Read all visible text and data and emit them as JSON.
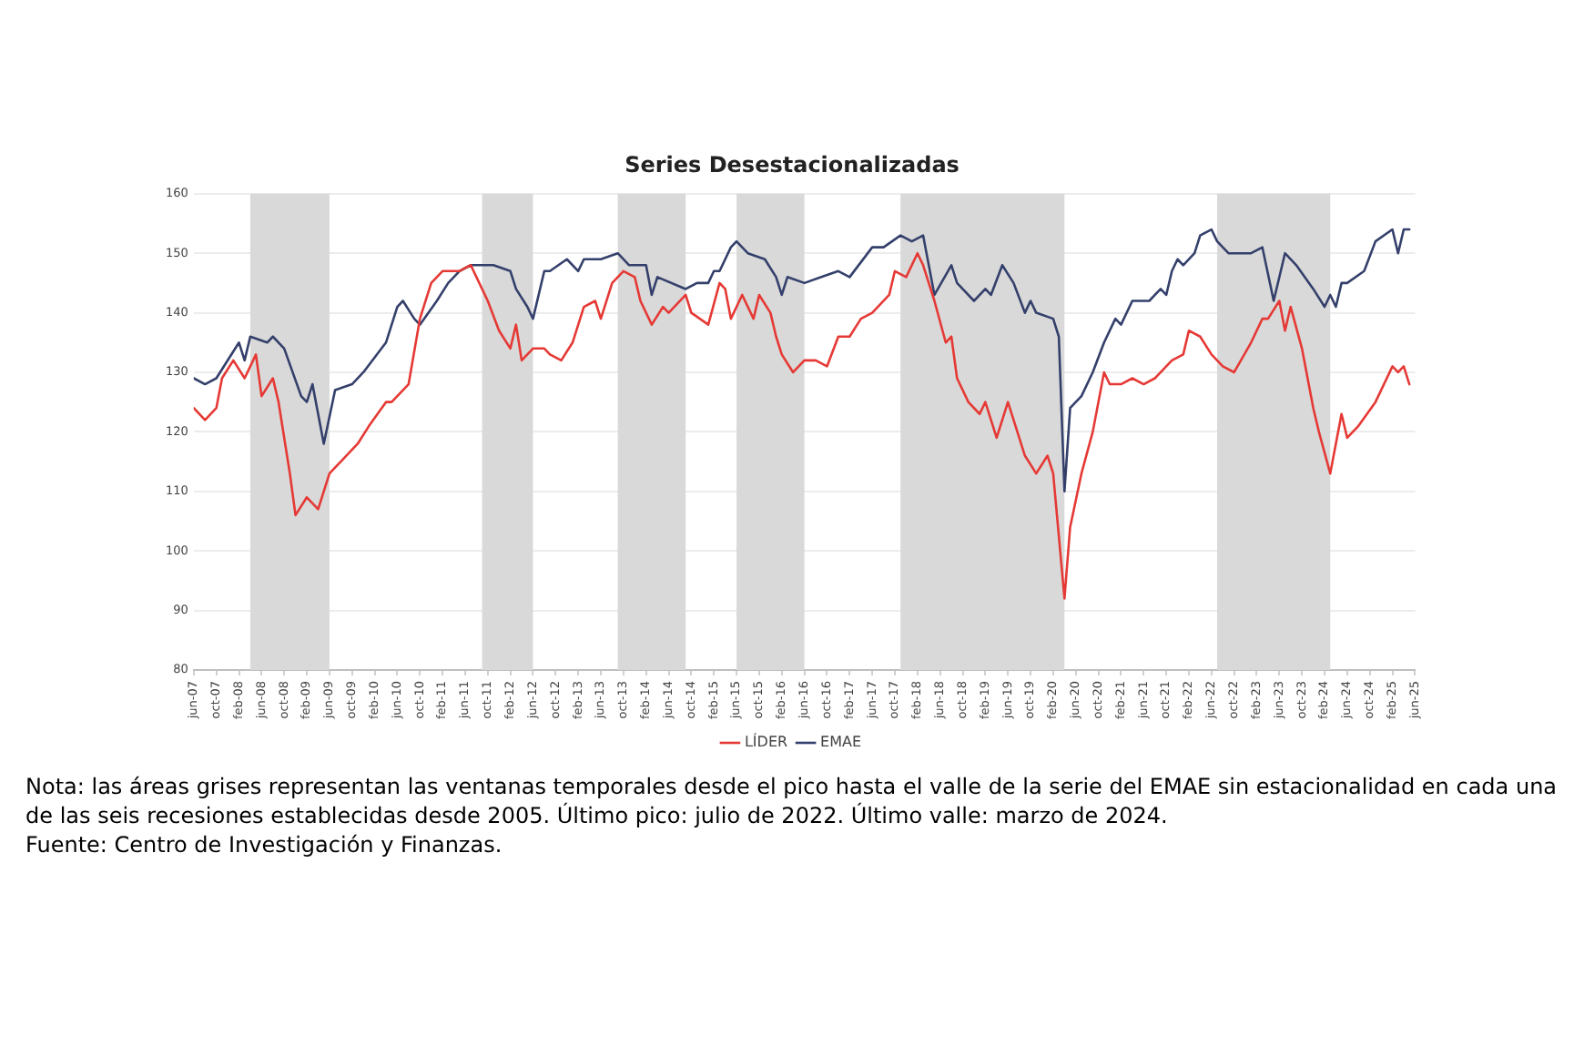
{
  "chart_data": {
    "type": "line",
    "title": "Series Desestacionalizadas",
    "series": [
      {
        "name": "LÍDER",
        "color": "#e53935",
        "x": [
          "2007-06",
          "2007-08",
          "2007-10",
          "2007-11",
          "2008-01",
          "2008-03",
          "2008-05",
          "2008-06",
          "2008-08",
          "2008-09",
          "2008-11",
          "2008-12",
          "2009-02",
          "2009-04",
          "2009-06",
          "2009-08",
          "2009-11",
          "2010-01",
          "2010-04",
          "2010-05",
          "2010-08",
          "2010-10",
          "2010-12",
          "2011-02",
          "2011-05",
          "2011-07",
          "2011-08",
          "2011-10",
          "2011-12",
          "2012-02",
          "2012-03",
          "2012-04",
          "2012-06",
          "2012-08",
          "2012-09",
          "2012-11",
          "2013-01",
          "2013-03",
          "2013-05",
          "2013-06",
          "2013-08",
          "2013-10",
          "2013-12",
          "2014-01",
          "2014-03",
          "2014-05",
          "2014-06",
          "2014-09",
          "2014-10",
          "2015-01",
          "2015-03",
          "2015-04",
          "2015-05",
          "2015-07",
          "2015-09",
          "2015-10",
          "2015-12",
          "2016-01",
          "2016-02",
          "2016-04",
          "2016-06",
          "2016-08",
          "2016-10",
          "2016-12",
          "2017-02",
          "2017-04",
          "2017-06",
          "2017-09",
          "2017-10",
          "2017-12",
          "2018-02",
          "2018-03",
          "2018-05",
          "2018-07",
          "2018-08",
          "2018-09",
          "2018-11",
          "2019-01",
          "2019-02",
          "2019-04",
          "2019-06",
          "2019-09",
          "2019-11",
          "2020-01",
          "2020-02",
          "2020-04",
          "2020-05",
          "2020-07",
          "2020-09",
          "2020-11",
          "2020-12",
          "2021-02",
          "2021-04",
          "2021-06",
          "2021-08",
          "2021-11",
          "2022-01",
          "2022-02",
          "2022-04",
          "2022-06",
          "2022-08",
          "2022-10",
          "2023-01",
          "2023-03",
          "2023-04",
          "2023-06",
          "2023-07",
          "2023-08",
          "2023-10",
          "2023-12",
          "2024-01",
          "2024-03",
          "2024-05",
          "2024-06",
          "2024-08",
          "2024-11",
          "2025-02",
          "2025-03",
          "2025-04",
          "2025-05"
        ],
        "values": [
          124,
          122,
          124,
          129,
          132,
          129,
          133,
          126,
          129,
          125,
          113,
          106,
          109,
          107,
          113,
          115,
          118,
          121,
          125,
          125,
          128,
          139,
          145,
          147,
          147,
          148,
          146,
          142,
          137,
          134,
          138,
          132,
          134,
          134,
          133,
          132,
          135,
          141,
          142,
          139,
          145,
          147,
          146,
          142,
          138,
          141,
          140,
          143,
          140,
          138,
          145,
          144,
          139,
          143,
          139,
          143,
          140,
          136,
          133,
          130,
          132,
          132,
          131,
          136,
          136,
          139,
          140,
          143,
          147,
          146,
          150,
          148,
          142,
          135,
          136,
          129,
          125,
          123,
          125,
          119,
          125,
          116,
          113,
          116,
          113,
          92,
          104,
          113,
          120,
          130,
          128,
          128,
          129,
          128,
          129,
          132,
          133,
          137,
          136,
          133,
          131,
          130,
          135,
          139,
          139,
          142,
          137,
          141,
          134,
          124,
          120,
          113,
          123,
          119,
          121,
          125,
          131,
          130,
          131,
          128
        ]
      },
      {
        "name": "EMAE",
        "color": "#34406b",
        "x": [
          "2007-06",
          "2007-08",
          "2007-10",
          "2008-02",
          "2008-03",
          "2008-04",
          "2008-07",
          "2008-08",
          "2008-10",
          "2009-01",
          "2009-02",
          "2009-03",
          "2009-05",
          "2009-07",
          "2009-10",
          "2009-12",
          "2010-04",
          "2010-06",
          "2010-07",
          "2010-09",
          "2010-10",
          "2011-01",
          "2011-03",
          "2011-05",
          "2011-07",
          "2011-09",
          "2011-11",
          "2012-02",
          "2012-03",
          "2012-05",
          "2012-06",
          "2012-08",
          "2012-09",
          "2012-12",
          "2013-02",
          "2013-03",
          "2013-06",
          "2013-09",
          "2013-11",
          "2014-02",
          "2014-03",
          "2014-04",
          "2014-09",
          "2014-11",
          "2015-01",
          "2015-02",
          "2015-03",
          "2015-05",
          "2015-06",
          "2015-08",
          "2015-11",
          "2016-01",
          "2016-02",
          "2016-03",
          "2016-06",
          "2016-09",
          "2016-12",
          "2017-02",
          "2017-06",
          "2017-08",
          "2017-11",
          "2018-01",
          "2018-03",
          "2018-05",
          "2018-08",
          "2018-09",
          "2018-12",
          "2019-02",
          "2019-03",
          "2019-05",
          "2019-07",
          "2019-09",
          "2019-10",
          "2019-11",
          "2020-02",
          "2020-03",
          "2020-04",
          "2020-05",
          "2020-07",
          "2020-09",
          "2020-11",
          "2021-01",
          "2021-02",
          "2021-04",
          "2021-06",
          "2021-07",
          "2021-09",
          "2021-10",
          "2021-11",
          "2021-12",
          "2022-01",
          "2022-03",
          "2022-04",
          "2022-06",
          "2022-07",
          "2022-09",
          "2022-11",
          "2023-01",
          "2023-03",
          "2023-05",
          "2023-07",
          "2023-09",
          "2023-12",
          "2024-02",
          "2024-03",
          "2024-04",
          "2024-05",
          "2024-06",
          "2024-09",
          "2024-11",
          "2025-02",
          "2025-03",
          "2025-04",
          "2025-05"
        ],
        "values": [
          129,
          128,
          129,
          135,
          132,
          136,
          135,
          136,
          134,
          126,
          125,
          128,
          118,
          127,
          128,
          130,
          135,
          141,
          142,
          139,
          138,
          142,
          145,
          147,
          148,
          148,
          148,
          147,
          144,
          141,
          139,
          147,
          147,
          149,
          147,
          149,
          149,
          150,
          148,
          148,
          143,
          146,
          144,
          145,
          145,
          147,
          147,
          151,
          152,
          150,
          149,
          146,
          143,
          146,
          145,
          146,
          147,
          146,
          151,
          151,
          153,
          152,
          153,
          143,
          148,
          145,
          142,
          144,
          143,
          148,
          145,
          140,
          142,
          140,
          139,
          136,
          110,
          124,
          126,
          130,
          135,
          139,
          138,
          142,
          142,
          142,
          144,
          143,
          147,
          149,
          148,
          150,
          153,
          154,
          152,
          150,
          150,
          150,
          151,
          142,
          150,
          148,
          144,
          141,
          143,
          141,
          145,
          145,
          147,
          152,
          154,
          150,
          154,
          154
        ]
      }
    ],
    "xlim": [
      "2007-06",
      "2025-06"
    ],
    "xticks": [
      {
        "value": "2007-06",
        "label": "jun-07"
      },
      {
        "value": "2007-10",
        "label": "oct-07"
      },
      {
        "value": "2008-02",
        "label": "feb-08"
      },
      {
        "value": "2008-06",
        "label": "jun-08"
      },
      {
        "value": "2008-10",
        "label": "oct-08"
      },
      {
        "value": "2009-02",
        "label": "feb-09"
      },
      {
        "value": "2009-06",
        "label": "jun-09"
      },
      {
        "value": "2009-10",
        "label": "oct-09"
      },
      {
        "value": "2010-02",
        "label": "feb-10"
      },
      {
        "value": "2010-06",
        "label": "jun-10"
      },
      {
        "value": "2010-10",
        "label": "oct-10"
      },
      {
        "value": "2011-02",
        "label": "feb-11"
      },
      {
        "value": "2011-06",
        "label": "jun-11"
      },
      {
        "value": "2011-10",
        "label": "oct-11"
      },
      {
        "value": "2012-02",
        "label": "feb-12"
      },
      {
        "value": "2012-06",
        "label": "jun-12"
      },
      {
        "value": "2012-10",
        "label": "oct-12"
      },
      {
        "value": "2013-02",
        "label": "feb-13"
      },
      {
        "value": "2013-06",
        "label": "jun-13"
      },
      {
        "value": "2013-10",
        "label": "oct-13"
      },
      {
        "value": "2014-02",
        "label": "feb-14"
      },
      {
        "value": "2014-06",
        "label": "jun-14"
      },
      {
        "value": "2014-10",
        "label": "oct-14"
      },
      {
        "value": "2015-02",
        "label": "feb-15"
      },
      {
        "value": "2015-06",
        "label": "jun-15"
      },
      {
        "value": "2015-10",
        "label": "oct-15"
      },
      {
        "value": "2016-02",
        "label": "feb-16"
      },
      {
        "value": "2016-06",
        "label": "jun-16"
      },
      {
        "value": "2016-10",
        "label": "oct-16"
      },
      {
        "value": "2017-02",
        "label": "feb-17"
      },
      {
        "value": "2017-06",
        "label": "jun-17"
      },
      {
        "value": "2017-10",
        "label": "oct-17"
      },
      {
        "value": "2018-02",
        "label": "feb-18"
      },
      {
        "value": "2018-06",
        "label": "jun-18"
      },
      {
        "value": "2018-10",
        "label": "oct-18"
      },
      {
        "value": "2019-02",
        "label": "feb-19"
      },
      {
        "value": "2019-06",
        "label": "jun-19"
      },
      {
        "value": "2019-10",
        "label": "oct-19"
      },
      {
        "value": "2020-02",
        "label": "feb-20"
      },
      {
        "value": "2020-06",
        "label": "jun-20"
      },
      {
        "value": "2020-10",
        "label": "oct-20"
      },
      {
        "value": "2021-02",
        "label": "feb-21"
      },
      {
        "value": "2021-06",
        "label": "jun-21"
      },
      {
        "value": "2021-10",
        "label": "oct-21"
      },
      {
        "value": "2022-02",
        "label": "feb-22"
      },
      {
        "value": "2022-06",
        "label": "jun-22"
      },
      {
        "value": "2022-10",
        "label": "oct-22"
      },
      {
        "value": "2023-02",
        "label": "feb-23"
      },
      {
        "value": "2023-06",
        "label": "jun-23"
      },
      {
        "value": "2023-10",
        "label": "oct-23"
      },
      {
        "value": "2024-02",
        "label": "feb-24"
      },
      {
        "value": "2024-06",
        "label": "jun-24"
      },
      {
        "value": "2024-10",
        "label": "oct-24"
      },
      {
        "value": "2025-02",
        "label": "feb-25"
      },
      {
        "value": "2025-06",
        "label": "jun-25"
      }
    ],
    "ylim": [
      80,
      160
    ],
    "yticks": [
      80,
      90,
      100,
      110,
      120,
      130,
      140,
      150,
      160
    ],
    "bands": [
      {
        "axis": "x",
        "from": "2008-04",
        "to": "2009-06",
        "color": "#d9d9d9"
      },
      {
        "axis": "x",
        "from": "2011-09",
        "to": "2012-06",
        "color": "#d9d9d9"
      },
      {
        "axis": "x",
        "from": "2013-09",
        "to": "2014-09",
        "color": "#d9d9d9"
      },
      {
        "axis": "x",
        "from": "2015-06",
        "to": "2016-06",
        "color": "#d9d9d9"
      },
      {
        "axis": "x",
        "from": "2017-11",
        "to": "2020-04",
        "color": "#d9d9d9"
      },
      {
        "axis": "x",
        "from": "2022-07",
        "to": "2024-03",
        "color": "#d9d9d9"
      }
    ],
    "grid": "y",
    "legend": "bottom",
    "marker": "none",
    "line_style": "solid",
    "annotations": [
      "Nota: las áreas grises representan las ventanas temporales desde el pico hasta el valle de la serie del EMAE sin estacionalidad en cada una de las seis recesiones establecidas desde 2005. Último pico: julio de 2022. Último valle: marzo de 2024.",
      "Fuente: Centro de Investigación y Finanzas."
    ]
  }
}
